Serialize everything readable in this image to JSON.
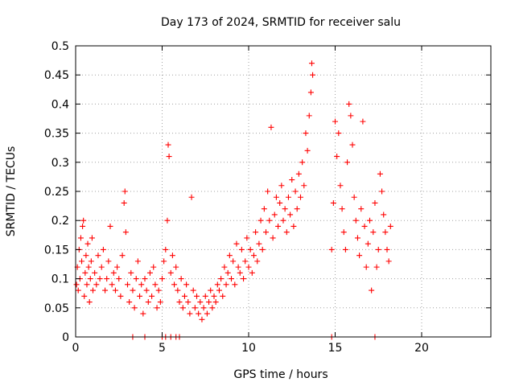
{
  "chart_data": {
    "type": "scatter",
    "title": "Day 173 of 2024, SRMTID for receiver salu",
    "xlabel": "GPS time / hours",
    "ylabel": "SRMTID / TECUs",
    "xlim": [
      0,
      24
    ],
    "ylim": [
      0,
      0.5
    ],
    "x_ticks": [
      0,
      5,
      10,
      15,
      20
    ],
    "x_tick_labels": [
      "0",
      "5",
      "10",
      "15",
      "20"
    ],
    "y_ticks": [
      0,
      0.05,
      0.1,
      0.15,
      0.2,
      0.25,
      0.3,
      0.35,
      0.4,
      0.45,
      0.5
    ],
    "y_tick_labels": [
      "0",
      "0.05",
      "0.1",
      "0.15",
      "0.2",
      "0.25",
      "0.3",
      "0.35",
      "0.4",
      "0.45",
      "0.5"
    ],
    "grid": true,
    "marker": "plus",
    "colors": {
      "points": "#ff0000",
      "grid": "#a0a0a0",
      "axes": "#000000"
    },
    "series": [
      {
        "points": [
          [
            0.05,
            0.09
          ],
          [
            0.1,
            0.12
          ],
          [
            0.15,
            0.08
          ],
          [
            0.2,
            0.15
          ],
          [
            0.25,
            0.1
          ],
          [
            0.3,
            0.17
          ],
          [
            0.35,
            0.13
          ],
          [
            0.4,
            0.19
          ],
          [
            0.45,
            0.2
          ],
          [
            0.5,
            0.07
          ],
          [
            0.55,
            0.11
          ],
          [
            0.6,
            0.14
          ],
          [
            0.65,
            0.09
          ],
          [
            0.7,
            0.16
          ],
          [
            0.75,
            0.12
          ],
          [
            0.8,
            0.06
          ],
          [
            0.85,
            0.1
          ],
          [
            0.9,
            0.13
          ],
          [
            0.95,
            0.17
          ],
          [
            1.0,
            0.08
          ],
          [
            1.1,
            0.11
          ],
          [
            1.2,
            0.09
          ],
          [
            1.3,
            0.14
          ],
          [
            1.4,
            0.1
          ],
          [
            1.5,
            0.12
          ],
          [
            1.6,
            0.15
          ],
          [
            1.7,
            0.08
          ],
          [
            1.8,
            0.1
          ],
          [
            1.9,
            0.13
          ],
          [
            2.0,
            0.19
          ],
          [
            2.1,
            0.09
          ],
          [
            2.2,
            0.11
          ],
          [
            2.3,
            0.08
          ],
          [
            2.4,
            0.12
          ],
          [
            2.5,
            0.1
          ],
          [
            2.6,
            0.07
          ],
          [
            2.7,
            0.14
          ],
          [
            2.8,
            0.23
          ],
          [
            2.85,
            0.25
          ],
          [
            2.9,
            0.18
          ],
          [
            3.0,
            0.09
          ],
          [
            3.1,
            0.06
          ],
          [
            3.2,
            0.11
          ],
          [
            3.3,
            0.08
          ],
          [
            3.4,
            0.05
          ],
          [
            3.5,
            0.1
          ],
          [
            3.6,
            0.13
          ],
          [
            3.7,
            0.07
          ],
          [
            3.8,
            0.09
          ],
          [
            3.9,
            0.04
          ],
          [
            4.0,
            0.1
          ],
          [
            4.1,
            0.08
          ],
          [
            4.2,
            0.06
          ],
          [
            4.3,
            0.11
          ],
          [
            4.4,
            0.07
          ],
          [
            4.5,
            0.12
          ],
          [
            4.6,
            0.09
          ],
          [
            4.7,
            0.05
          ],
          [
            4.8,
            0.08
          ],
          [
            4.9,
            0.06
          ],
          [
            5.0,
            0.1
          ],
          [
            5.1,
            0.13
          ],
          [
            5.2,
            0.15
          ],
          [
            5.3,
            0.2
          ],
          [
            5.35,
            0.33
          ],
          [
            5.4,
            0.31
          ],
          [
            5.5,
            0.11
          ],
          [
            5.6,
            0.14
          ],
          [
            5.7,
            0.09
          ],
          [
            5.8,
            0.12
          ],
          [
            5.9,
            0.08
          ],
          [
            6.0,
            0.06
          ],
          [
            6.1,
            0.1
          ],
          [
            6.2,
            0.05
          ],
          [
            6.3,
            0.07
          ],
          [
            6.4,
            0.09
          ],
          [
            6.5,
            0.06
          ],
          [
            6.6,
            0.04
          ],
          [
            6.7,
            0.24
          ],
          [
            6.8,
            0.08
          ],
          [
            6.9,
            0.05
          ],
          [
            7.0,
            0.07
          ],
          [
            7.1,
            0.04
          ],
          [
            7.2,
            0.06
          ],
          [
            7.3,
            0.03
          ],
          [
            7.4,
            0.05
          ],
          [
            7.5,
            0.07
          ],
          [
            7.6,
            0.04
          ],
          [
            7.7,
            0.06
          ],
          [
            7.8,
            0.08
          ],
          [
            7.9,
            0.05
          ],
          [
            8.0,
            0.07
          ],
          [
            8.1,
            0.06
          ],
          [
            8.2,
            0.09
          ],
          [
            8.3,
            0.08
          ],
          [
            8.4,
            0.1
          ],
          [
            8.5,
            0.07
          ],
          [
            8.6,
            0.12
          ],
          [
            8.7,
            0.09
          ],
          [
            8.8,
            0.11
          ],
          [
            8.9,
            0.14
          ],
          [
            9.0,
            0.1
          ],
          [
            9.1,
            0.13
          ],
          [
            9.2,
            0.09
          ],
          [
            9.3,
            0.16
          ],
          [
            9.4,
            0.12
          ],
          [
            9.5,
            0.11
          ],
          [
            9.6,
            0.15
          ],
          [
            9.7,
            0.1
          ],
          [
            9.8,
            0.13
          ],
          [
            9.9,
            0.17
          ],
          [
            10.0,
            0.12
          ],
          [
            10.1,
            0.15
          ],
          [
            10.2,
            0.11
          ],
          [
            10.3,
            0.14
          ],
          [
            10.4,
            0.18
          ],
          [
            10.5,
            0.13
          ],
          [
            10.6,
            0.16
          ],
          [
            10.7,
            0.2
          ],
          [
            10.8,
            0.15
          ],
          [
            10.9,
            0.22
          ],
          [
            11.0,
            0.18
          ],
          [
            11.1,
            0.25
          ],
          [
            11.2,
            0.2
          ],
          [
            11.3,
            0.36
          ],
          [
            11.4,
            0.17
          ],
          [
            11.5,
            0.21
          ],
          [
            11.6,
            0.24
          ],
          [
            11.7,
            0.19
          ],
          [
            11.8,
            0.23
          ],
          [
            11.9,
            0.26
          ],
          [
            12.0,
            0.2
          ],
          [
            12.1,
            0.22
          ],
          [
            12.2,
            0.18
          ],
          [
            12.3,
            0.24
          ],
          [
            12.4,
            0.21
          ],
          [
            12.5,
            0.27
          ],
          [
            12.6,
            0.19
          ],
          [
            12.7,
            0.25
          ],
          [
            12.8,
            0.22
          ],
          [
            12.9,
            0.28
          ],
          [
            13.0,
            0.24
          ],
          [
            13.1,
            0.3
          ],
          [
            13.2,
            0.26
          ],
          [
            13.3,
            0.35
          ],
          [
            13.4,
            0.32
          ],
          [
            13.5,
            0.38
          ],
          [
            13.6,
            0.42
          ],
          [
            13.65,
            0.47
          ],
          [
            13.7,
            0.45
          ],
          [
            14.8,
            0.15
          ],
          [
            14.9,
            0.23
          ],
          [
            15.0,
            0.37
          ],
          [
            15.1,
            0.31
          ],
          [
            15.2,
            0.35
          ],
          [
            15.3,
            0.26
          ],
          [
            15.4,
            0.22
          ],
          [
            15.5,
            0.18
          ],
          [
            15.6,
            0.15
          ],
          [
            15.7,
            0.3
          ],
          [
            15.8,
            0.4
          ],
          [
            15.9,
            0.38
          ],
          [
            16.0,
            0.33
          ],
          [
            16.1,
            0.24
          ],
          [
            16.2,
            0.2
          ],
          [
            16.3,
            0.17
          ],
          [
            16.4,
            0.14
          ],
          [
            16.5,
            0.22
          ],
          [
            16.6,
            0.37
          ],
          [
            16.7,
            0.19
          ],
          [
            16.8,
            0.12
          ],
          [
            16.9,
            0.16
          ],
          [
            17.0,
            0.2
          ],
          [
            17.1,
            0.08
          ],
          [
            17.2,
            0.18
          ],
          [
            17.3,
            0.23
          ],
          [
            17.4,
            0.12
          ],
          [
            17.5,
            0.15
          ],
          [
            17.6,
            0.28
          ],
          [
            17.7,
            0.25
          ],
          [
            17.8,
            0.21
          ],
          [
            17.9,
            0.18
          ],
          [
            18.0,
            0.15
          ],
          [
            18.1,
            0.13
          ],
          [
            18.2,
            0.19
          ]
        ]
      },
      {
        "points": [
          [
            3.3,
            0
          ],
          [
            4.0,
            0
          ],
          [
            5.0,
            0
          ],
          [
            5.2,
            0
          ],
          [
            5.5,
            0
          ],
          [
            5.8,
            0
          ],
          [
            6.0,
            0
          ],
          [
            14.8,
            0
          ],
          [
            17.3,
            0
          ]
        ]
      }
    ]
  }
}
